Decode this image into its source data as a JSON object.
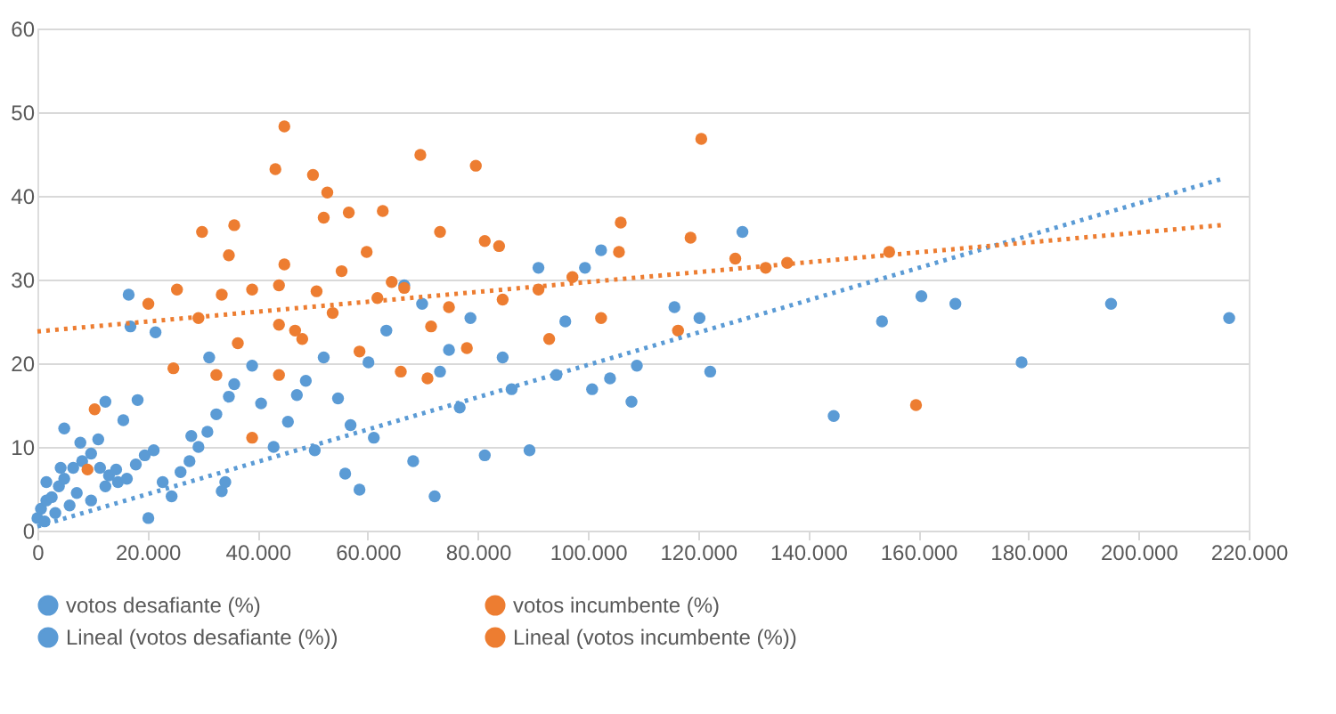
{
  "chart_data": {
    "type": "scatter",
    "xlim": [
      0,
      220000
    ],
    "ylim": [
      0,
      60
    ],
    "xticks": [
      {
        "value": 0,
        "label": "0"
      },
      {
        "value": 20000,
        "label": "20.000"
      },
      {
        "value": 40000,
        "label": "40.000"
      },
      {
        "value": 60000,
        "label": "60.000"
      },
      {
        "value": 80000,
        "label": "80.000"
      },
      {
        "value": 100000,
        "label": "100.000"
      },
      {
        "value": 120000,
        "label": "120.000"
      },
      {
        "value": 140000,
        "label": "140.000"
      },
      {
        "value": 160000,
        "label": "160.000"
      },
      {
        "value": 180000,
        "label": "180.000"
      },
      {
        "value": 200000,
        "label": "200.000"
      },
      {
        "value": 220000,
        "label": "220.000"
      }
    ],
    "yticks": [
      0,
      10,
      20,
      30,
      40,
      50,
      60
    ],
    "grid": "y",
    "legend": "bottom",
    "series": [
      {
        "name": "votos desafiante (%)",
        "color": "#5b9bd5",
        "marker": "circle",
        "x": [
          0,
          650,
          1625,
          2600,
          3900,
          4875,
          6500,
          8125,
          9750,
          11375,
          13000,
          14625,
          16250,
          17875,
          19500,
          21125,
          22750,
          24375,
          26000,
          27625,
          29250,
          30875,
          32500,
          33475,
          34125,
          35750,
          39000,
          40625,
          45500,
          48750,
          52000,
          54600,
          56875,
          58500,
          60125,
          63375,
          66625,
          69875,
          72150,
          74750,
          78650,
          81250,
          86125,
          89375,
          91000,
          94250,
          99450,
          100750,
          104000,
          107900,
          108875,
          115700,
          120250,
          122200,
          128050,
          144625,
          153400,
          160550,
          166725,
          178750,
          195000,
          216450,
          16575,
          16900,
          21450,
          15600,
          20150,
          4875,
          1300,
          3250,
          5850,
          7150,
          9750,
          12350,
          14300,
          1625,
          4225,
          7800,
          11050,
          12350,
          18200,
          27950,
          31200,
          34775,
          42900,
          47125,
          50375,
          55900,
          61100,
          68250,
          73125,
          76700,
          84500,
          95875,
          102375
        ],
        "values": [
          1.5,
          2.6,
          3.6,
          4,
          5.3,
          6.2,
          7.5,
          8.3,
          9.2,
          7.5,
          6.6,
          5.8,
          6.2,
          7.9,
          9,
          9.6,
          5.8,
          4.1,
          7,
          8.3,
          10,
          11.8,
          13.9,
          4.7,
          5.8,
          17.5,
          19.7,
          15.2,
          13,
          17.9,
          20.7,
          15.8,
          12.6,
          4.9,
          20.1,
          23.9,
          29.3,
          27.1,
          4.1,
          21.6,
          25.4,
          9,
          16.9,
          9.6,
          31.4,
          18.6,
          31.4,
          16.9,
          18.2,
          15.4,
          19.7,
          26.7,
          25.4,
          19,
          35.7,
          13.7,
          25,
          28,
          27.1,
          20.1,
          27.1,
          25.4,
          28.2,
          24.4,
          23.7,
          13.2,
          1.5,
          12.2,
          1.1,
          2.1,
          3,
          4.5,
          3.6,
          5.3,
          7.3,
          5.8,
          7.5,
          10.5,
          10.9,
          15.4,
          15.6,
          11.3,
          20.7,
          16,
          10,
          16.2,
          9.6,
          6.8,
          11.1,
          8.3,
          19,
          14.7,
          20.7,
          25,
          33.5
        ]
      },
      {
        "name": "votos incumbente (%)",
        "color": "#ed7d31",
        "marker": "circle",
        "x": [
          44850,
          120575,
          69550,
          43225,
          50050,
          79625,
          52650,
          29900,
          35750,
          73125,
          105950,
          118625,
          81250,
          59800,
          34775,
          105625,
          83850,
          136175,
          132275,
          126750,
          154700,
          44850,
          55250,
          66625,
          39000,
          25350,
          20150,
          29250,
          43875,
          48100,
          36400,
          32500,
          66000,
          24700,
          43875,
          70850,
          58500,
          91000,
          97175,
          102375,
          116350,
          159575,
          10400,
          9100,
          39000,
          53625,
          50700,
          43875,
          61750,
          74750,
          64350,
          62725,
          52000,
          56550,
          78000,
          84500,
          71500,
          92950,
          46800,
          33475
        ],
        "values": [
          48.3,
          46.8,
          44.9,
          43.2,
          42.5,
          43.6,
          40.4,
          35.7,
          36.5,
          35.7,
          36.8,
          35,
          34.6,
          33.3,
          32.9,
          33.3,
          34,
          32,
          31.4,
          32.5,
          33.3,
          31.8,
          31,
          29,
          28.8,
          28.8,
          27.1,
          25.4,
          24.6,
          22.9,
          22.4,
          18.6,
          19,
          19.4,
          18.6,
          18.2,
          21.4,
          28.8,
          30.3,
          25.4,
          23.9,
          15,
          14.5,
          7.3,
          11.1,
          26,
          28.6,
          29.3,
          27.8,
          26.7,
          29.7,
          38.2,
          37.4,
          38,
          21.8,
          27.6,
          24.4,
          22.9,
          23.9,
          28.2
        ]
      },
      {
        "name": "Lineal (votos desafiante (%))",
        "color": "#5b9bd5",
        "type": "line",
        "line_style": "dotted",
        "marker": "none",
        "x": [
          0,
          215000
        ],
        "values": [
          0.5,
          42
        ]
      },
      {
        "name": "Lineal (votos incumbente (%))",
        "color": "#ed7d31",
        "type": "line",
        "line_style": "dotted",
        "marker": "none",
        "x": [
          0,
          215000
        ],
        "values": [
          23.8,
          36.5
        ]
      }
    ]
  }
}
